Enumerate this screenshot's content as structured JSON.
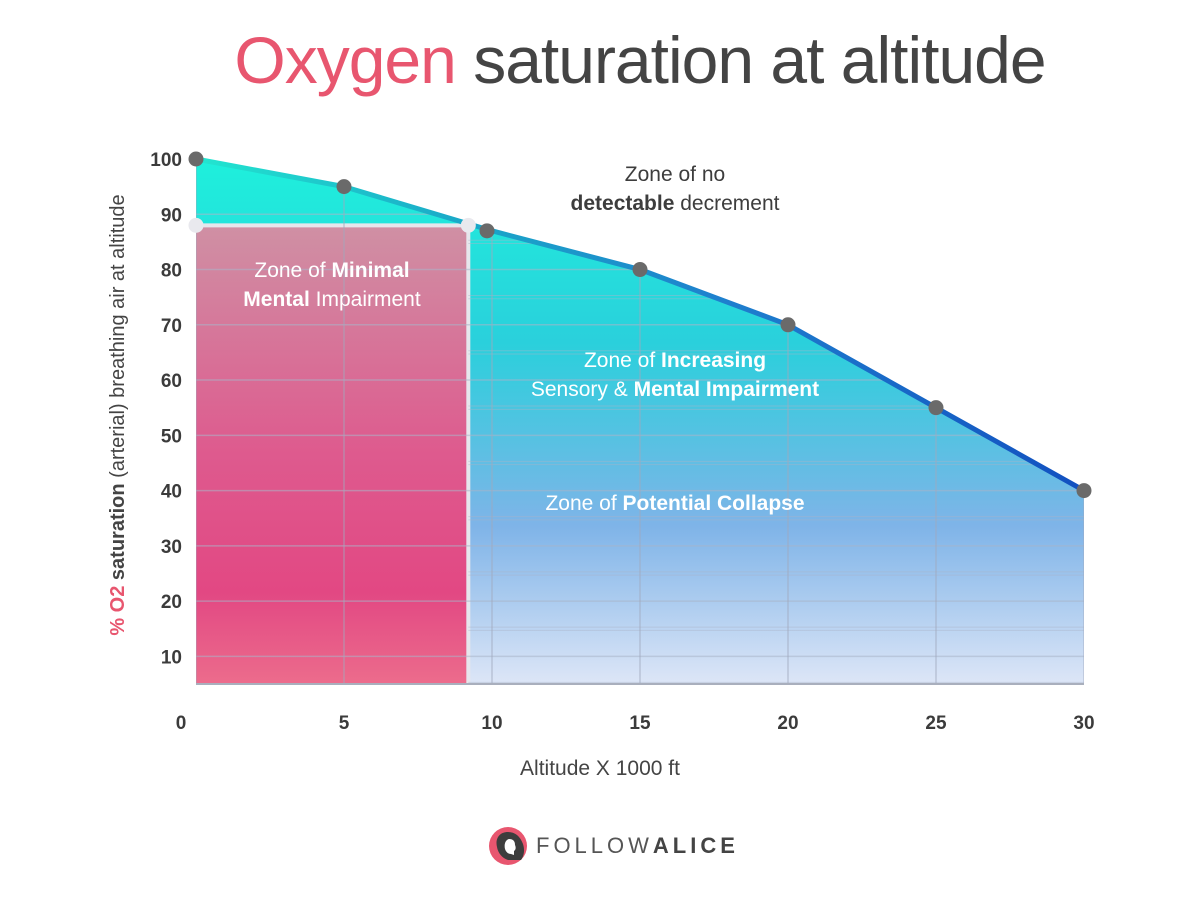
{
  "title": {
    "accent": "Oxygen",
    "rest": " saturation at altitude"
  },
  "colors": {
    "accent": "#e8566f",
    "teal": "#1de9d6",
    "line": "#1565c0",
    "pink": "#e0508a",
    "point": "#6a6a6a"
  },
  "chart_data": {
    "type": "area",
    "title": "Oxygen saturation at altitude",
    "xlabel": "Altitude X 1000 ft",
    "ylabel_parts": {
      "accent": "% O2 ",
      "bold": "saturation",
      "rest": " (arterial) breathing air at altitude"
    },
    "x": [
      0,
      5,
      10,
      15,
      20,
      25,
      30
    ],
    "y": [
      100,
      95,
      87,
      80,
      70,
      55,
      40
    ],
    "xlim": [
      0,
      30
    ],
    "ylim": [
      5,
      100
    ],
    "x_ticks": [
      0,
      5,
      10,
      15,
      20,
      25,
      30
    ],
    "y_ticks": [
      10,
      20,
      30,
      40,
      50,
      60,
      70,
      80,
      90,
      100
    ],
    "threshold": {
      "x_end": 9.2,
      "y": 88
    },
    "zones": [
      {
        "id": "no-decrement",
        "lines": [
          [
            {
              "t": "Zone of no",
              "b": false
            }
          ],
          [
            {
              "t": "detectable",
              "b": true
            },
            {
              "t": " decrement",
              "b": false
            }
          ]
        ]
      },
      {
        "id": "minimal",
        "lines": [
          [
            {
              "t": "Zone of ",
              "b": false
            },
            {
              "t": "Minimal",
              "b": true
            }
          ],
          [
            {
              "t": "Mental",
              "b": true
            },
            {
              "t": " Impairment",
              "b": false
            }
          ]
        ]
      },
      {
        "id": "increasing",
        "lines": [
          [
            {
              "t": "Zone of ",
              "b": false
            },
            {
              "t": "Increasing",
              "b": true
            }
          ],
          [
            {
              "t": "Sensory & ",
              "b": false
            },
            {
              "t": "Mental Impairment",
              "b": true
            }
          ]
        ]
      },
      {
        "id": "collapse",
        "lines": [
          [
            {
              "t": "Zone of ",
              "b": false
            },
            {
              "t": "Potential Collapse",
              "b": true
            }
          ]
        ]
      }
    ]
  },
  "logo": {
    "text_light": "FOLLOW",
    "text_bold": "ALICE"
  }
}
